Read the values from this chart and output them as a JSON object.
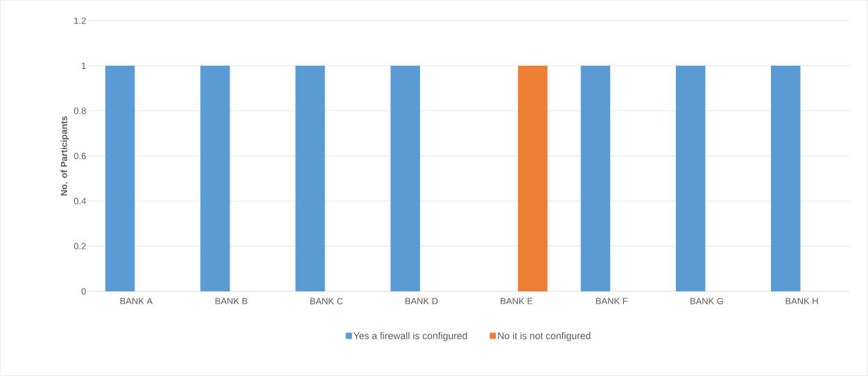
{
  "chart_data": {
    "type": "bar",
    "ylabel": "No. of Participants",
    "categories": [
      "BANK A",
      "BANK B",
      "BANK C",
      "BANK D",
      "BANK E",
      "BANK F",
      "BANK G",
      "BANK H"
    ],
    "series": [
      {
        "name": "Yes a firewall is configured",
        "color": "#5b9bd5",
        "values": [
          1,
          1,
          1,
          1,
          0,
          1,
          1,
          1
        ]
      },
      {
        "name": "No it is not configured",
        "color": "#ed7d31",
        "values": [
          0,
          0,
          0,
          0,
          1,
          0,
          0,
          0
        ]
      }
    ],
    "ylim": [
      0,
      1.2
    ],
    "yticks": [
      0,
      0.2,
      0.4,
      0.6,
      0.8,
      1,
      1.2
    ],
    "grid": "y",
    "legend": "bottom"
  }
}
